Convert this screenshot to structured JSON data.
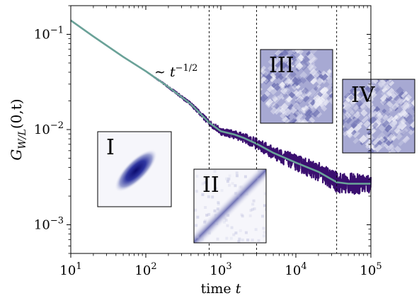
{
  "chart_data": {
    "type": "line",
    "xscale": "log",
    "yscale": "log",
    "xlim": [
      10,
      100000
    ],
    "ylim": [
      0.0005,
      0.2
    ],
    "x_ticks": [
      {
        "value": 10,
        "base": "10",
        "exp": "1"
      },
      {
        "value": 100,
        "base": "10",
        "exp": "2"
      },
      {
        "value": 1000,
        "base": "10",
        "exp": "3"
      },
      {
        "value": 10000,
        "base": "10",
        "exp": "4"
      },
      {
        "value": 100000,
        "base": "10",
        "exp": "5"
      }
    ],
    "y_ticks": [
      {
        "value": 0.001,
        "base": "10",
        "exp": "−3"
      },
      {
        "value": 0.01,
        "base": "10",
        "exp": "−2"
      },
      {
        "value": 0.1,
        "base": "10",
        "exp": "−1"
      }
    ],
    "xlabel": "time t",
    "ylabel": "G_W/L(0,t)",
    "annotation": "∼ t^(−1/2)",
    "vlines": [
      700,
      3000,
      35000
    ],
    "series": [
      {
        "role": "noisy",
        "color": "#3b0f70",
        "x": [
          10,
          20,
          50,
          100,
          200,
          400,
          700,
          1000,
          1500,
          2000,
          3000,
          5000,
          10000,
          20000,
          35000,
          50000,
          100000
        ],
        "y": [
          0.14,
          0.095,
          0.058,
          0.041,
          0.028,
          0.0185,
          0.0118,
          0.0096,
          0.0089,
          0.0082,
          0.0071,
          0.0057,
          0.0045,
          0.0036,
          0.0028,
          0.0027,
          0.0027
        ],
        "noise": [
          0,
          0,
          0,
          0,
          0.02,
          0.04,
          0.06,
          0.08,
          0.09,
          0.1,
          0.12,
          0.14,
          0.17,
          0.2,
          0.22,
          0.22,
          0.22
        ]
      },
      {
        "role": "smooth",
        "color": "#6aa398",
        "x": [
          10,
          20,
          50,
          100,
          200,
          400,
          700,
          1000,
          1500,
          2000,
          3000,
          5000,
          10000,
          20000,
          35000,
          50000,
          100000
        ],
        "y": [
          0.14,
          0.095,
          0.058,
          0.041,
          0.028,
          0.0185,
          0.0118,
          0.0096,
          0.0089,
          0.0082,
          0.0071,
          0.0057,
          0.0045,
          0.0036,
          0.0028,
          0.0027,
          0.0027
        ]
      }
    ],
    "insets": [
      {
        "label": "I",
        "pattern": "blob"
      },
      {
        "label": "II",
        "pattern": "band"
      },
      {
        "label": "III",
        "pattern": "noisy"
      },
      {
        "label": "IV",
        "pattern": "noisy2"
      }
    ]
  }
}
